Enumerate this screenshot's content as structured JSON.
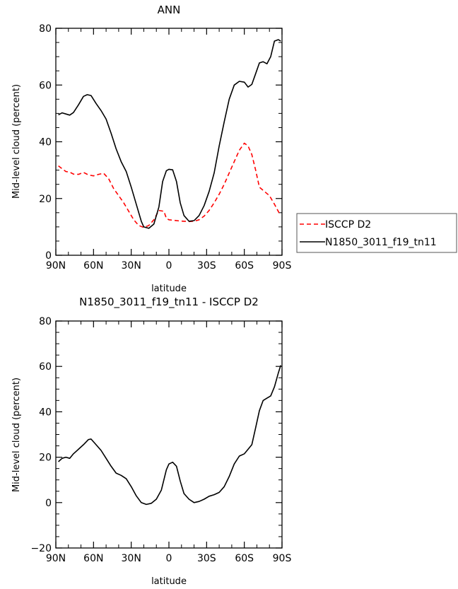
{
  "chart_data": [
    {
      "type": "line",
      "title": "ANN",
      "xlabel": "latitude",
      "ylabel": "Mid-level cloud (percent)",
      "xlim": [
        90,
        -90
      ],
      "ylim": [
        0,
        80
      ],
      "xticks": [
        {
          "value": 90,
          "label": "90N"
        },
        {
          "value": 60,
          "label": "60N"
        },
        {
          "value": 30,
          "label": "30N"
        },
        {
          "value": 0,
          "label": "0"
        },
        {
          "value": -30,
          "label": "30S"
        },
        {
          "value": -60,
          "label": "60S"
        },
        {
          "value": -90,
          "label": "90S"
        }
      ],
      "yticks": [
        0,
        20,
        40,
        60,
        80
      ],
      "legend": "right",
      "series": [
        {
          "name": "ISCCP D2",
          "color": "#ff0000",
          "dash": "dashed",
          "x": [
            88,
            85,
            82,
            79,
            76,
            72,
            68,
            64,
            60,
            56,
            52,
            48,
            44,
            40,
            36,
            32,
            28,
            24,
            20,
            16,
            12,
            8,
            4,
            2,
            0,
            -4,
            -8,
            -12,
            -16,
            -20,
            -24,
            -28,
            -32,
            -36,
            -40,
            -44,
            -48,
            -52,
            -56,
            -60,
            -63,
            -66,
            -69,
            -72,
            -76,
            -80,
            -84,
            -88
          ],
          "y": [
            31.5,
            30.5,
            29.5,
            29.3,
            28.6,
            28.5,
            29.2,
            28.3,
            28.0,
            28.5,
            28.9,
            27.0,
            23.5,
            21.0,
            18.5,
            15.5,
            12.5,
            10.5,
            9.8,
            10.5,
            12.5,
            15.8,
            15.5,
            13.0,
            12.5,
            12.3,
            12.1,
            12.0,
            11.9,
            12.0,
            12.5,
            13.8,
            15.8,
            18.5,
            21.5,
            25.0,
            29.0,
            33.0,
            37.0,
            39.5,
            38.5,
            35.5,
            30.0,
            24.0,
            22.5,
            21.0,
            18.0,
            14.7
          ]
        },
        {
          "name": "N1850_3011_f19_tn11",
          "color": "#000000",
          "dash": "solid",
          "x": [
            88,
            85,
            82,
            79,
            76,
            72,
            68,
            65,
            62,
            58,
            54,
            50,
            46,
            42,
            38,
            34,
            30,
            26,
            22,
            20,
            16,
            12,
            8,
            5,
            2,
            0,
            -3,
            -6,
            -9,
            -12,
            -16,
            -20,
            -24,
            -28,
            -32,
            -36,
            -40,
            -44,
            -48,
            -52,
            -56,
            -60,
            -63,
            -66,
            -69,
            -72,
            -75,
            -78,
            -81,
            -84,
            -87,
            -89
          ],
          "y": [
            49.5,
            50.2,
            49.8,
            49.4,
            50.3,
            53.0,
            56.0,
            56.6,
            56.3,
            53.5,
            51.0,
            48.0,
            43.0,
            37.5,
            33.0,
            29.5,
            24.0,
            18.0,
            12.0,
            10.0,
            9.5,
            11.0,
            17.0,
            26.0,
            29.8,
            30.3,
            30.1,
            26.0,
            18.5,
            14.0,
            12.0,
            12.2,
            14.0,
            17.5,
            22.5,
            29.0,
            38.5,
            47.0,
            55.0,
            60.0,
            61.3,
            61.0,
            59.3,
            60.2,
            64.0,
            67.8,
            68.2,
            67.5,
            70.0,
            75.5,
            76.0,
            75.5
          ]
        }
      ]
    },
    {
      "type": "line",
      "title": "N1850_3011_f19_tn11 - ISCCP D2",
      "xlabel": "latitude",
      "ylabel": "Mid-level cloud (percent)",
      "xlim": [
        90,
        -90
      ],
      "ylim": [
        -20,
        80
      ],
      "xticks": [
        {
          "value": 90,
          "label": "90N"
        },
        {
          "value": 60,
          "label": "60N"
        },
        {
          "value": 30,
          "label": "30N"
        },
        {
          "value": 0,
          "label": "0"
        },
        {
          "value": -30,
          "label": "30S"
        },
        {
          "value": -60,
          "label": "60S"
        },
        {
          "value": -90,
          "label": "90S"
        }
      ],
      "yticks": [
        -20,
        0,
        20,
        40,
        60,
        80
      ],
      "series": [
        {
          "color": "#000000",
          "dash": "solid",
          "x": [
            88,
            85,
            82,
            79,
            76,
            72,
            68,
            64,
            62,
            58,
            54,
            50,
            46,
            42,
            38,
            34,
            30,
            26,
            22,
            18,
            14,
            10,
            6,
            2,
            0,
            -3,
            -6,
            -9,
            -12,
            -16,
            -20,
            -24,
            -28,
            -32,
            -36,
            -40,
            -44,
            -48,
            -52,
            -56,
            -60,
            -63,
            -66,
            -69,
            -72,
            -75,
            -78,
            -81,
            -84,
            -87,
            -89
          ],
          "y": [
            18.0,
            19.5,
            20.0,
            19.5,
            21.5,
            23.5,
            25.5,
            27.8,
            28.0,
            25.5,
            23.0,
            19.5,
            16.0,
            13.0,
            12.0,
            10.5,
            7.0,
            3.0,
            0.0,
            -0.8,
            -0.3,
            1.5,
            5.5,
            14.5,
            17.0,
            17.8,
            16.0,
            9.5,
            4.0,
            1.5,
            0.0,
            0.5,
            1.5,
            2.8,
            3.5,
            4.5,
            7.0,
            11.5,
            17.0,
            20.5,
            21.5,
            23.5,
            25.5,
            33.0,
            40.5,
            45.0,
            46.0,
            47.0,
            51.0,
            57.0,
            60.5
          ]
        }
      ]
    }
  ]
}
